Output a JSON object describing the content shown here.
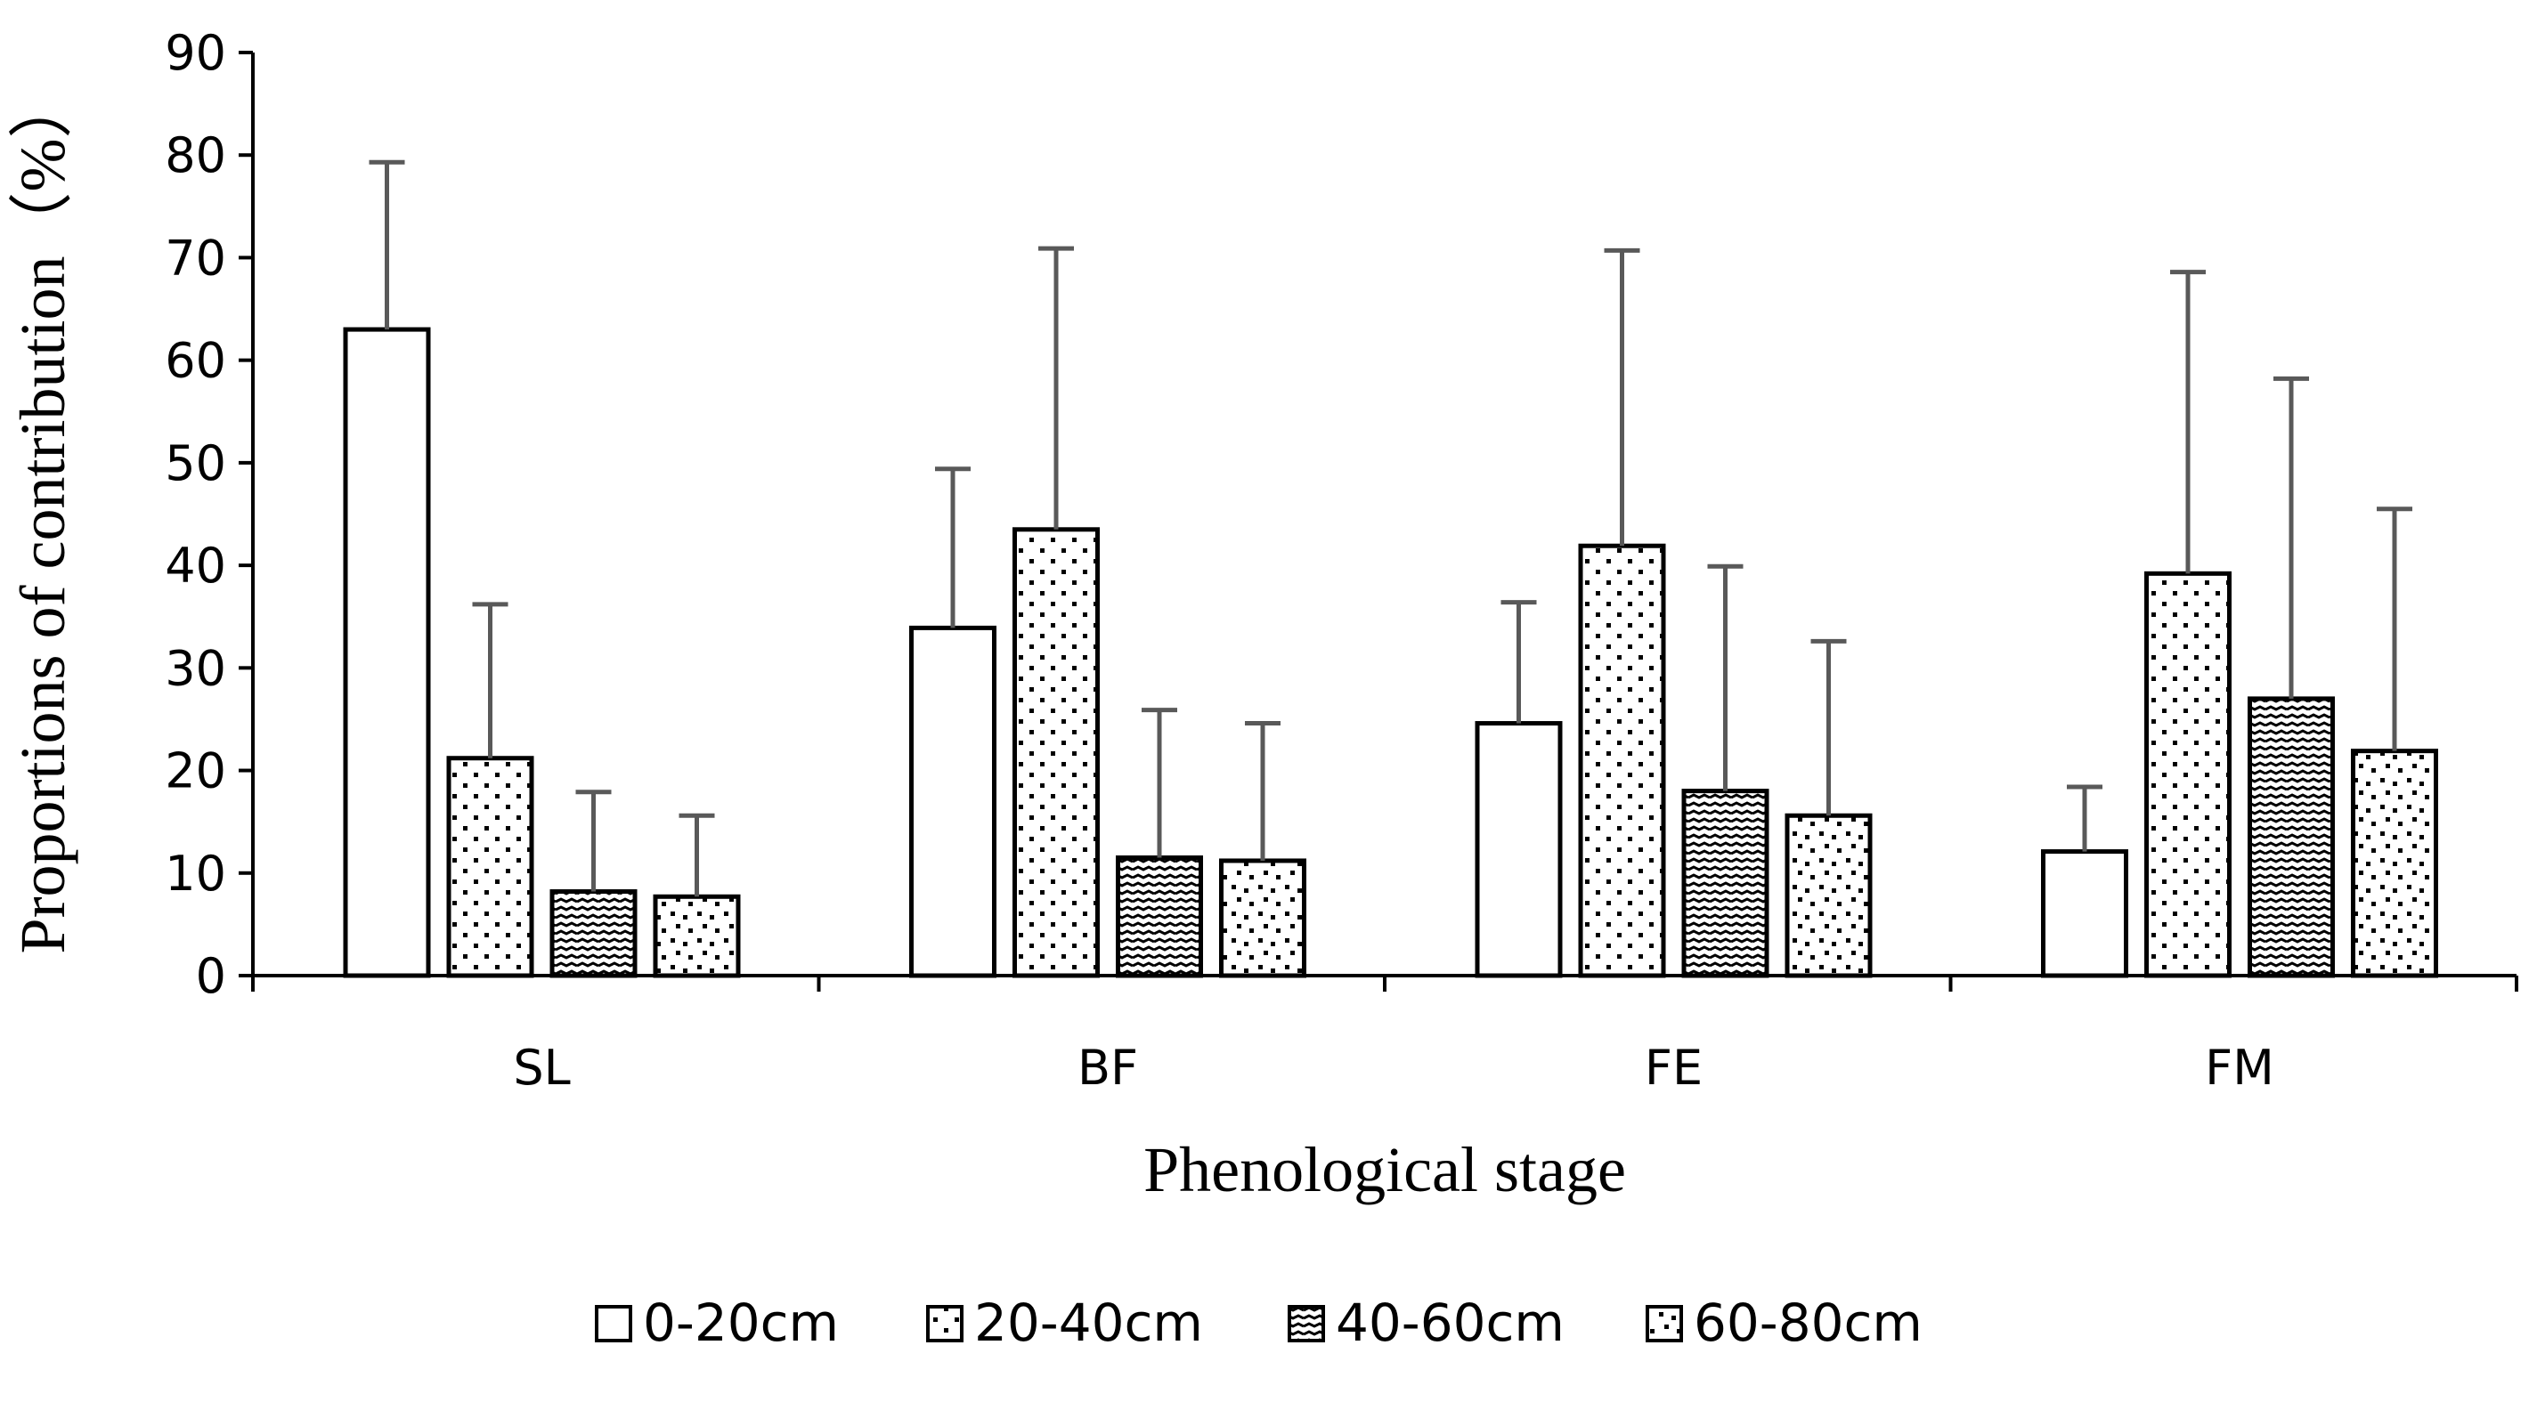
{
  "chart_data": {
    "type": "bar",
    "title": "",
    "xlabel": "Phenological stage",
    "ylabel": "Proportions of contribution（%）",
    "ylim": [
      0,
      90
    ],
    "ytick_step": 10,
    "categories": [
      "SL",
      "BF",
      "FE",
      "FM"
    ],
    "error_bars": "upper",
    "series": [
      {
        "name": "0-20cm",
        "pattern": "none",
        "values": [
          63.0,
          33.9,
          24.6,
          12.1
        ],
        "errors": [
          16.3,
          15.5,
          11.8,
          6.3
        ]
      },
      {
        "name": "20-40cm",
        "pattern": "dots",
        "values": [
          21.2,
          43.5,
          41.9,
          39.2
        ],
        "errors": [
          15.0,
          27.4,
          28.8,
          29.4
        ]
      },
      {
        "name": "40-60cm",
        "pattern": "dashes",
        "values": [
          8.2,
          11.5,
          18.0,
          27.0
        ],
        "errors": [
          9.7,
          14.4,
          21.9,
          31.2
        ]
      },
      {
        "name": "60-80cm",
        "pattern": "scatter",
        "values": [
          7.7,
          11.2,
          15.6,
          21.9
        ],
        "errors": [
          7.9,
          13.4,
          17.0,
          23.6
        ]
      }
    ],
    "legend_position": "bottom-center",
    "colors": {
      "bar_stroke": "#000000",
      "bar_fill": "#ffffff",
      "error_bar": "#595959",
      "axis": "#000000"
    }
  }
}
